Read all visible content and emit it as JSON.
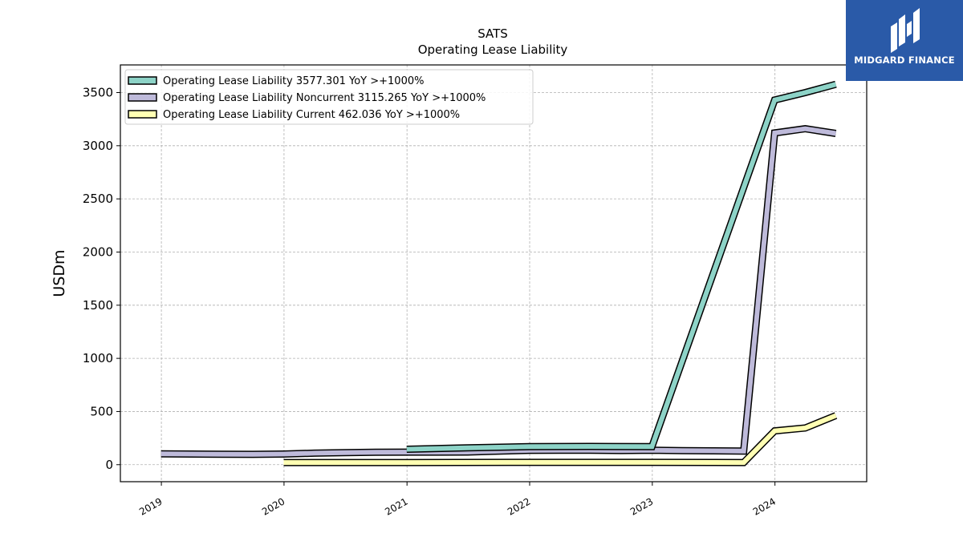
{
  "logo": {
    "text": "MIDGARD FINANCE"
  },
  "chart_data": {
    "type": "line",
    "title": "SATS",
    "subtitle": "Operating Lease Liability",
    "xlabel": "",
    "ylabel": "USDm",
    "xlim": [
      "2018-09-01",
      "2024-09-30"
    ],
    "ylim": [
      -160,
      3760
    ],
    "yticks": [
      0,
      500,
      1000,
      1500,
      2000,
      2500,
      3000,
      3500
    ],
    "xticks": [
      {
        "date": "2019-01-01",
        "label": "2019"
      },
      {
        "date": "2020-01-01",
        "label": "2020"
      },
      {
        "date": "2021-01-01",
        "label": "2021"
      },
      {
        "date": "2022-01-01",
        "label": "2022"
      },
      {
        "date": "2023-01-01",
        "label": "2023"
      },
      {
        "date": "2024-01-01",
        "label": "2024"
      }
    ],
    "grid": true,
    "legend_position": "top-left",
    "series": [
      {
        "name": "Operating Lease Liability  3577.301 YoY >+1000%",
        "color": "#8dd3c7",
        "points": [
          [
            "2020-12-31",
            145
          ],
          [
            "2021-06-30",
            158
          ],
          [
            "2021-12-31",
            170
          ],
          [
            "2022-06-30",
            172
          ],
          [
            "2022-12-31",
            170
          ],
          [
            "2023-12-31",
            3430
          ],
          [
            "2024-03-31",
            3500
          ],
          [
            "2024-06-30",
            3577.301
          ]
        ]
      },
      {
        "name": "Operating Lease Liability Noncurrent  3115.265 YoY >+1000%",
        "color": "#bebada",
        "points": [
          [
            "2018-12-31",
            102
          ],
          [
            "2019-03-31",
            100
          ],
          [
            "2019-06-30",
            98
          ],
          [
            "2019-09-30",
            97
          ],
          [
            "2019-12-31",
            100
          ],
          [
            "2020-03-31",
            108
          ],
          [
            "2020-06-30",
            113
          ],
          [
            "2020-09-30",
            117
          ],
          [
            "2020-12-31",
            118
          ],
          [
            "2021-03-31",
            118
          ],
          [
            "2021-06-30",
            119
          ],
          [
            "2021-09-30",
            127
          ],
          [
            "2021-12-31",
            135
          ],
          [
            "2022-03-31",
            136
          ],
          [
            "2022-06-30",
            136
          ],
          [
            "2022-09-30",
            133
          ],
          [
            "2022-12-31",
            136
          ],
          [
            "2023-03-31",
            132
          ],
          [
            "2023-06-30",
            130
          ],
          [
            "2023-09-30",
            128
          ],
          [
            "2023-12-31",
            3120
          ],
          [
            "2024-03-31",
            3160
          ],
          [
            "2024-06-30",
            3115.265
          ]
        ]
      },
      {
        "name": "Operating Lease Liability Current  462.036 YoY >+1000%",
        "color": "#ffffb3",
        "points": [
          [
            "2019-12-31",
            20
          ],
          [
            "2020-12-31",
            20
          ],
          [
            "2021-12-31",
            22
          ],
          [
            "2022-12-31",
            22
          ],
          [
            "2023-09-30",
            20
          ],
          [
            "2023-12-31",
            318
          ],
          [
            "2024-03-31",
            345
          ],
          [
            "2024-06-30",
            462.036
          ]
        ]
      }
    ]
  }
}
